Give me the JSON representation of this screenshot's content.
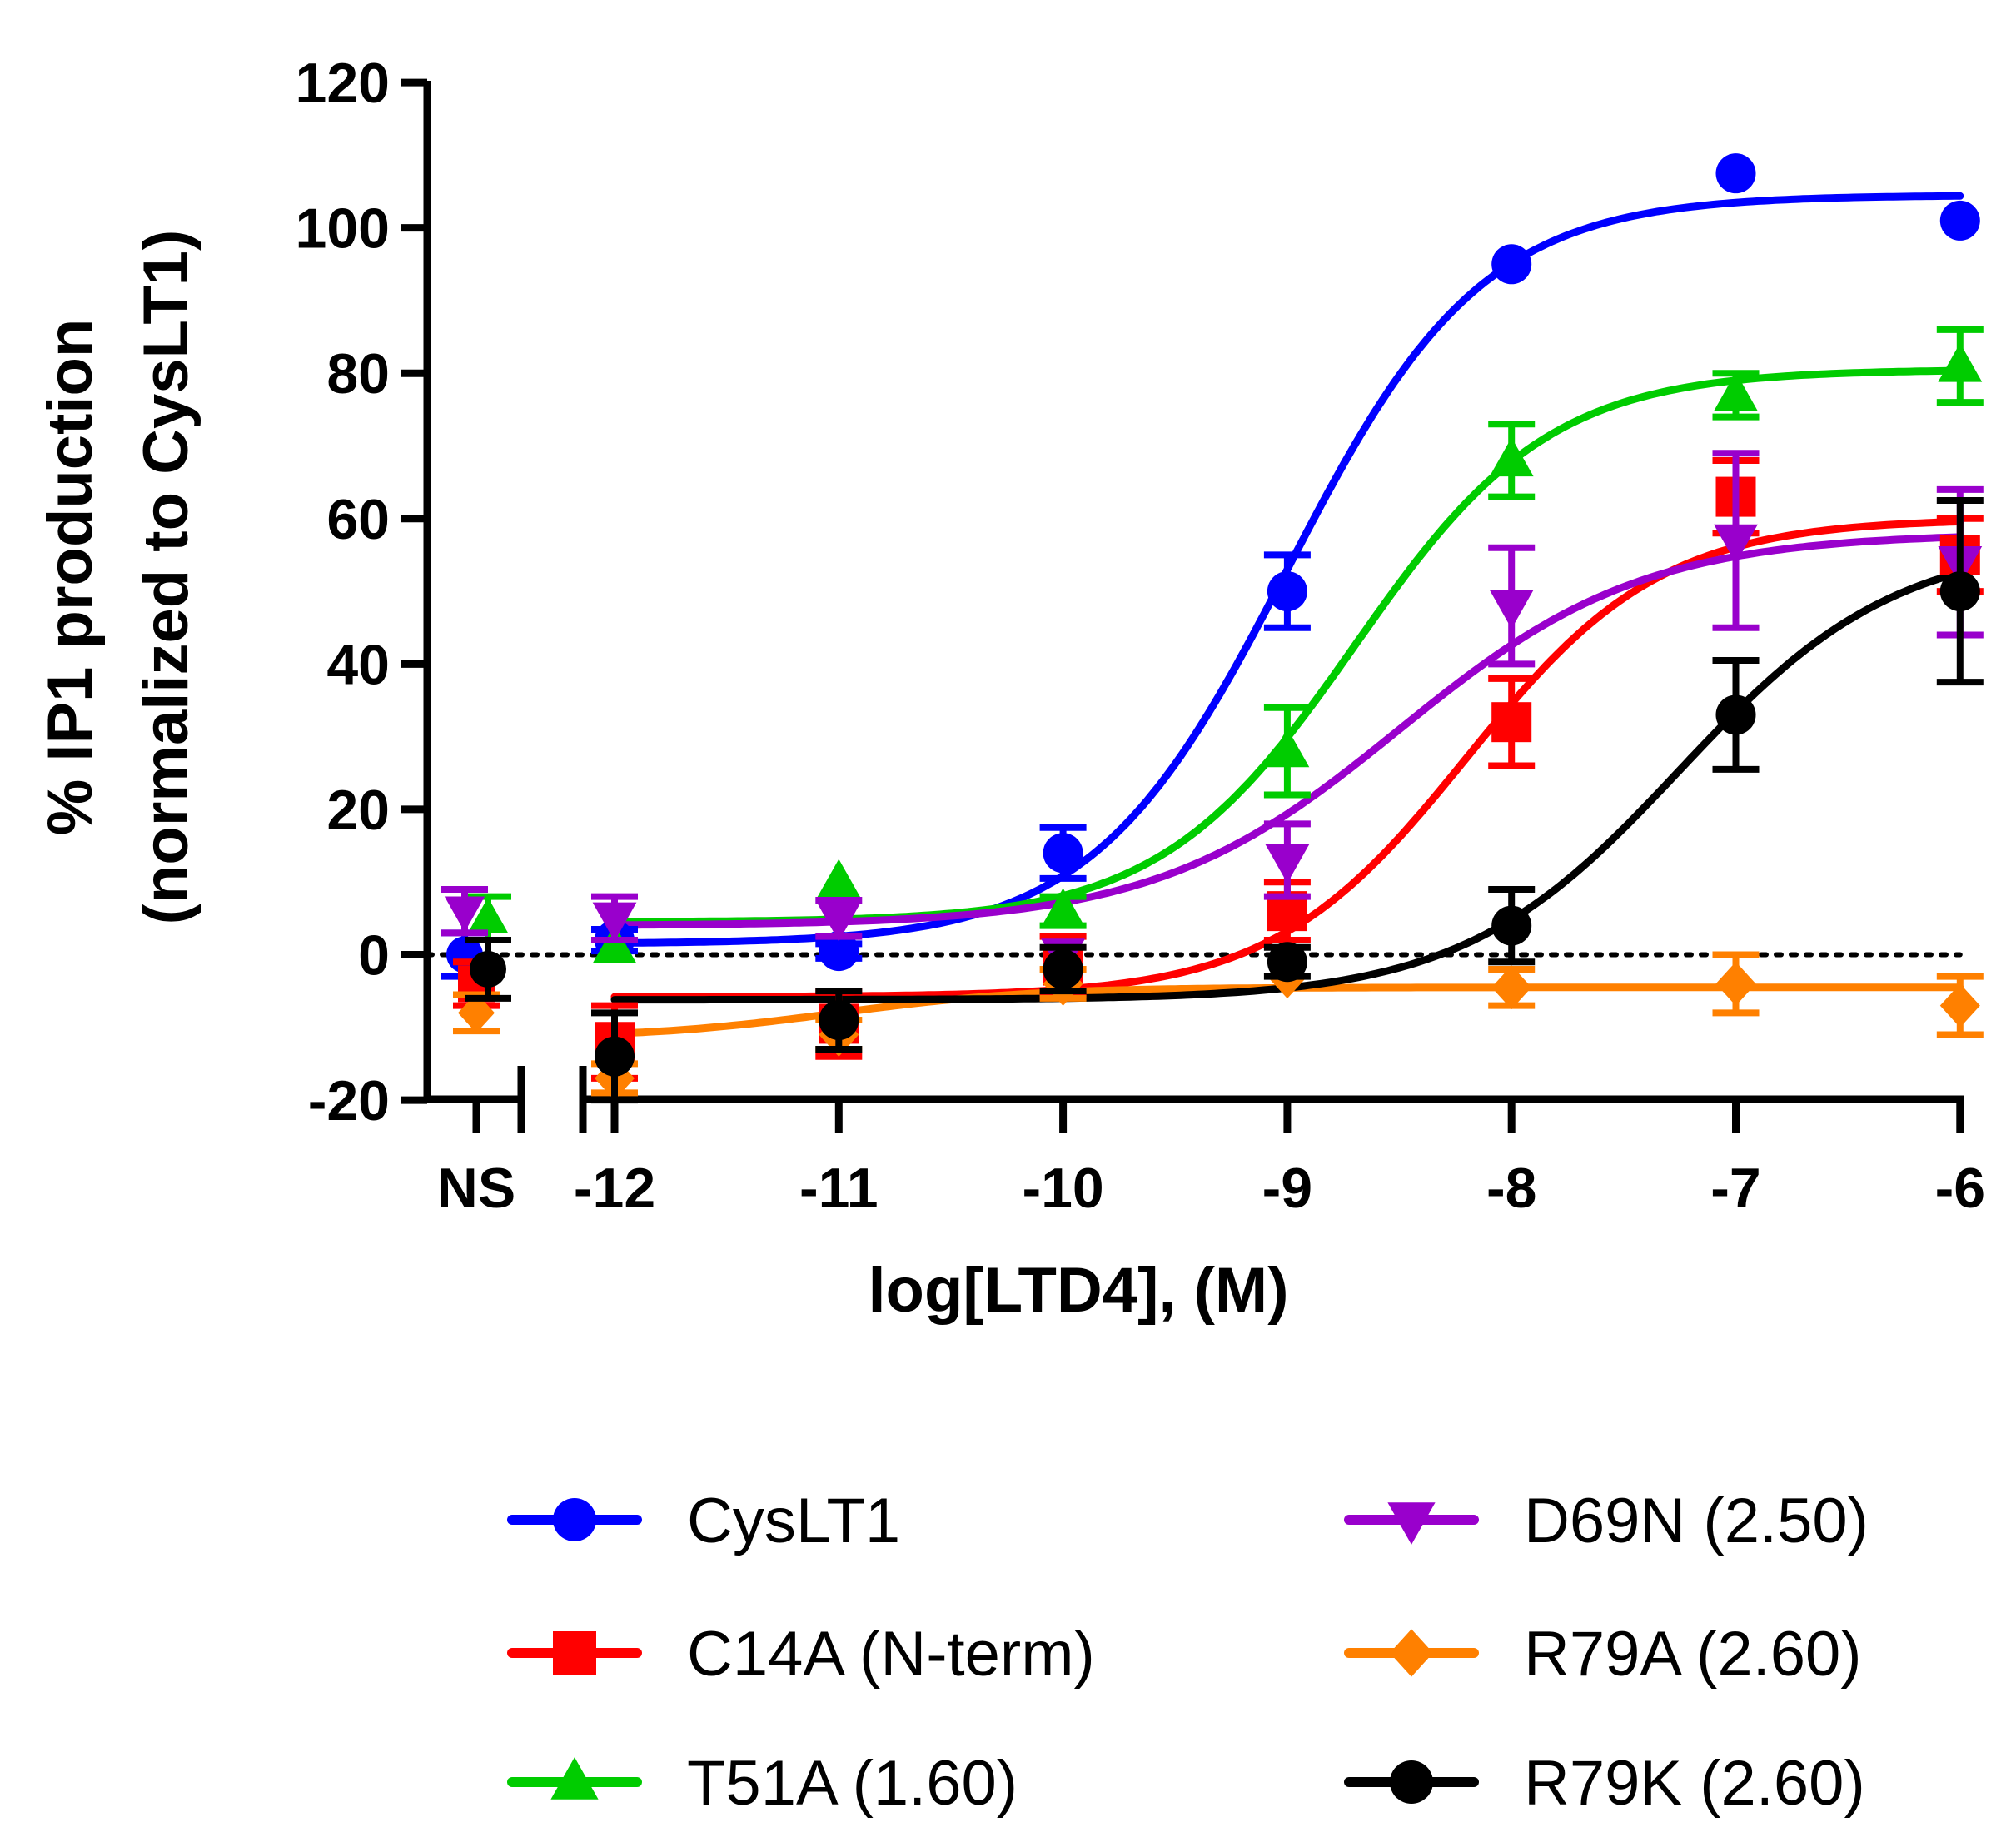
{
  "chart_data": {
    "type": "scatter",
    "xlabel": "log[LTD4], (M)",
    "ylabel": [
      "% IP1 production",
      "(normalized to CysLT1)"
    ],
    "xlim": [
      -12.8,
      -6
    ],
    "ylim": [
      -20,
      120
    ],
    "x_ticks": [
      "-12",
      "-11",
      "-10",
      "-9",
      "-8",
      "-7",
      "-6"
    ],
    "y_ticks": [
      "-20",
      "0",
      "20",
      "40",
      "60",
      "80",
      "100",
      "120"
    ],
    "ns_label": "NS",
    "reference_line": 0,
    "legend_placement": "bottom",
    "series": [
      {
        "name": "CysLT1",
        "color": "#0000ff",
        "marker": "circle",
        "ns": {
          "y": 0,
          "err": 3
        },
        "x": [
          -12,
          -11,
          -10,
          -9,
          -8,
          -7,
          -6
        ],
        "y": [
          2,
          0.5,
          14,
          50,
          95,
          107.5,
          101
        ],
        "err": [
          1.5,
          1,
          3.5,
          5,
          0,
          0,
          0
        ],
        "fit": {
          "bottom": 1.5,
          "top": 104.5,
          "logec50": -9.0,
          "hill": 1.0
        }
      },
      {
        "name": "C14A (N-term)",
        "color": "#ff0000",
        "marker": "square",
        "ns": {
          "y": -4,
          "err": 3
        },
        "x": [
          -12,
          -11,
          -10,
          -9,
          -8,
          -7,
          -6
        ],
        "y": [
          -12,
          -9.5,
          -1.5,
          6,
          32,
          63,
          55
        ],
        "err": [
          5,
          4.5,
          4,
          4,
          6,
          5,
          5
        ],
        "fit": {
          "bottom": -5.8,
          "top": 60,
          "logec50": -8.2,
          "hill": 1.0
        }
      },
      {
        "name": "T51A (1.60)",
        "color": "#00cc00",
        "marker": "triangle-up",
        "ns": {
          "y": 5,
          "err": 3
        },
        "x": [
          -12,
          -11,
          -10,
          -9,
          -8,
          -7,
          -6
        ],
        "y": [
          1,
          10,
          6,
          28,
          68,
          77,
          81
        ],
        "err": [
          0,
          0,
          2,
          6,
          5,
          3,
          5
        ],
        "fit": {
          "bottom": 4.5,
          "top": 80.5,
          "logec50": -8.7,
          "hill": 1.0
        }
      },
      {
        "name": "D69N (2.50)",
        "color": "#9900cc",
        "marker": "triangle-down",
        "ns": {
          "y": 6,
          "err": 3
        },
        "x": [
          -12,
          -11,
          -10,
          -9,
          -8,
          -7,
          -6
        ],
        "y": [
          5,
          5,
          0,
          13,
          48,
          57,
          54
        ],
        "err": [
          3,
          2.5,
          0,
          5,
          8,
          12,
          10
        ],
        "fit": {
          "bottom": 4,
          "top": 58,
          "logec50": -8.5,
          "hill": 0.8
        }
      },
      {
        "name": "R79A (2.60)",
        "color": "#ff8000",
        "marker": "diamond",
        "ns": {
          "y": -8,
          "err": 2.5
        },
        "x": [
          -12,
          -11,
          -10,
          -9,
          -8,
          -7,
          -6
        ],
        "y": [
          -17,
          -11,
          -4,
          -3,
          -4.5,
          -4,
          -7
        ],
        "err": [
          2,
          2,
          2,
          0,
          2.5,
          4,
          4
        ],
        "fit": {
          "bottom": -11.5,
          "top": -4.5,
          "logec50": -11.0,
          "hill": 1.0
        }
      },
      {
        "name": "R79K (2.60)",
        "color": "#000000",
        "marker": "circle",
        "ns": {
          "y": -2,
          "err": 4
        },
        "x": [
          -12,
          -11,
          -10,
          -9,
          -8,
          -7,
          -6
        ],
        "y": [
          -14,
          -9,
          -2,
          -1,
          4,
          33,
          50
        ],
        "err": [
          6,
          4,
          3,
          2,
          5,
          7.5,
          12.5
        ],
        "fit": {
          "bottom": -6.2,
          "top": 57,
          "logec50": -7.25,
          "hill": 0.9
        }
      }
    ]
  }
}
